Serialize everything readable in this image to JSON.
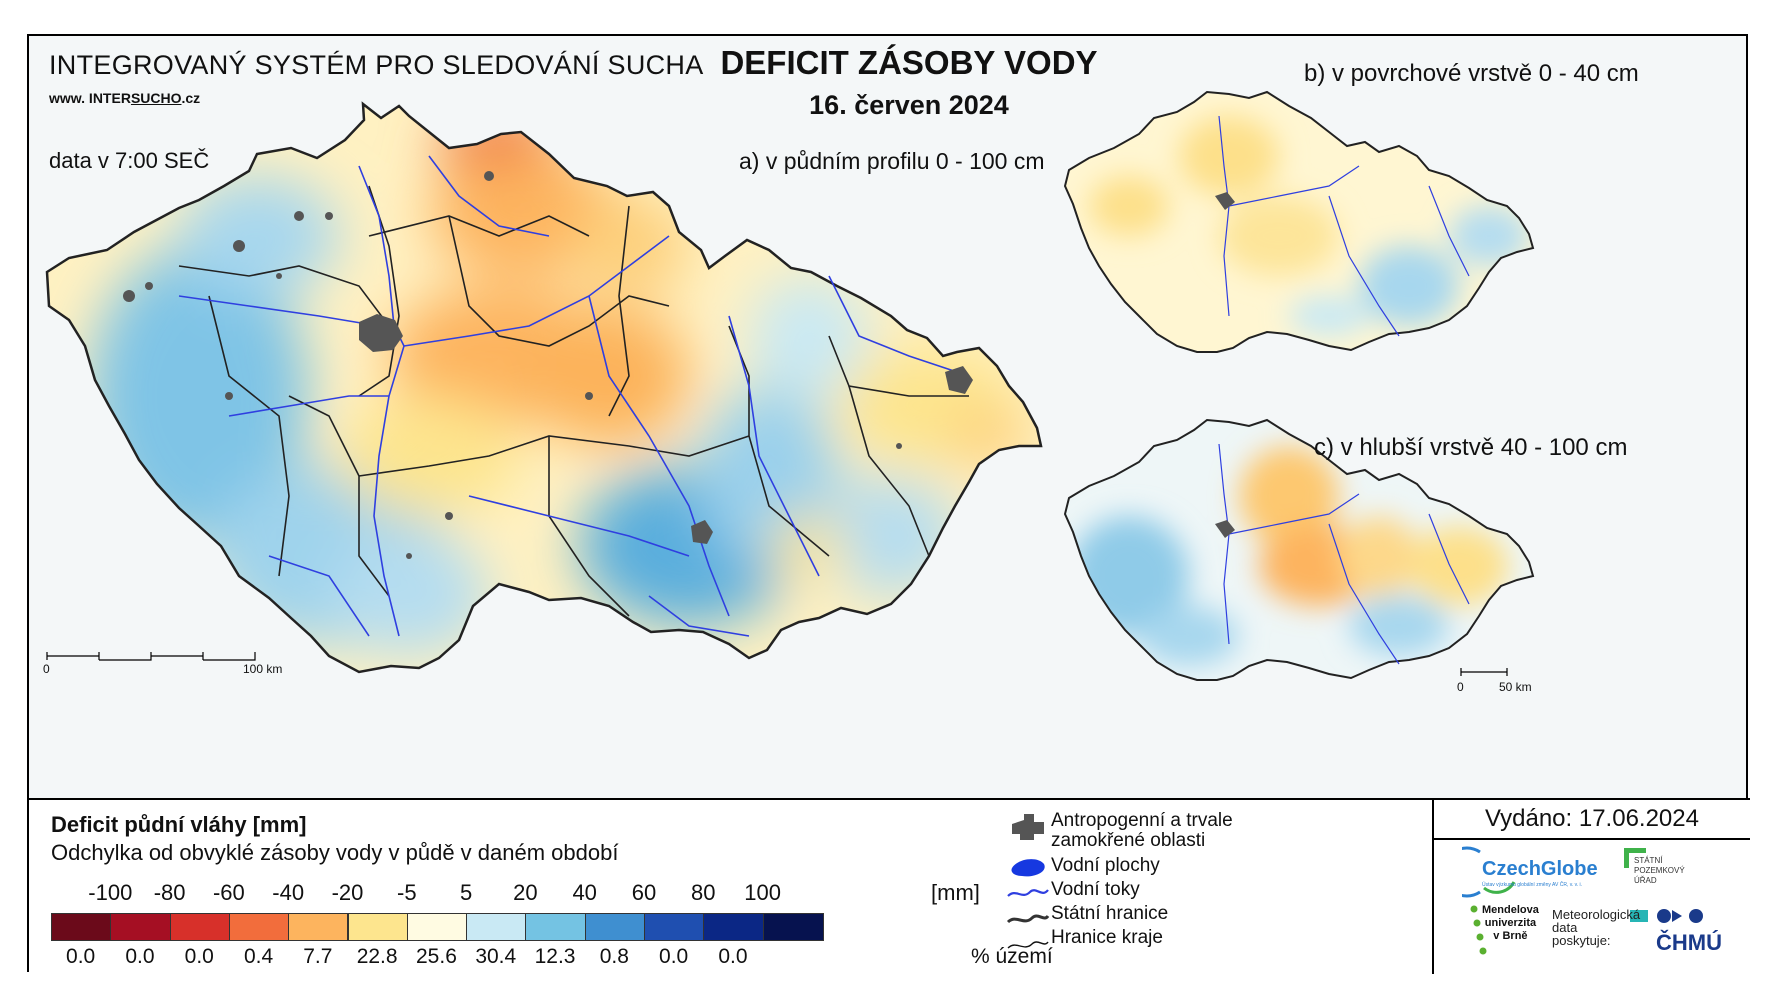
{
  "header": {
    "system_title": "INTEGROVANÝ SYSTÉM PRO SLEDOVÁNÍ SUCHA",
    "web_prefix": "www. INTER",
    "web_under": "SUCHO",
    "web_suffix": ".cz",
    "time": "data v 7:00 SEČ",
    "title": "DEFICIT ZÁSOBY VODY",
    "date": "16. červen 2024"
  },
  "maps": {
    "a_label": "a) v půdním profilu 0 - 100 cm",
    "b_label": "b) v povrchové vrstvě 0 - 40 cm",
    "c_label": "c) v hlubší vrstvě 40 - 100 cm",
    "scale_main_0": "0",
    "scale_main_end": "100 km",
    "scale_small_0": "0",
    "scale_small_end": "50 km"
  },
  "legend": {
    "title": "Deficit půdní vláhy  [mm]",
    "subtitle": "Odchylka od obvyklé zásoby vody v půdě v daném období",
    "ticks": [
      "-100",
      "-80",
      "-60",
      "-40",
      "-20",
      "-5",
      "5",
      "20",
      "40",
      "60",
      "80",
      "100"
    ],
    "unit_mm": "[mm]",
    "colors": [
      "#6b0a1a",
      "#a50f23",
      "#d7302a",
      "#f26d3c",
      "#fdb45e",
      "#fde58e",
      "#fffbe2",
      "#c9e9f4",
      "#74c3e3",
      "#3f8fd0",
      "#1f4fb0",
      "#0b2785",
      "#06124f"
    ],
    "percents": [
      "0.0",
      "0.0",
      "0.0",
      "0.4",
      "7.7",
      "22.8",
      "25.6",
      "30.4",
      "12.3",
      "0.8",
      "0.0",
      "0.0"
    ],
    "unit_pct": "% území"
  },
  "symbols": {
    "anthropogenic": "Antropogenní a trvale",
    "anthropogenic2": "zamokřené oblasti",
    "water_bodies": "Vodní plochy",
    "rivers": "Vodní toky",
    "state_border": "Státní hranice",
    "region_border": "Hranice kraje"
  },
  "issued": "Vydáno: 17.06.2024",
  "logos": {
    "czechglobe": "CzechGlobe",
    "czechglobe_sub": "Ústav výzkumu globální změny AV ČR, v. v. i.",
    "spu1": "STÁTNÍ",
    "spu2": "POZEMKOVÝ",
    "spu3": "ÚŘAD",
    "mendel1": "Mendelova",
    "mendel2": "univerzita",
    "mendel3": "v Brně",
    "meteo1": "Meteorologická",
    "meteo2": "data",
    "meteo3": "poskytuje:",
    "chmu": "ČHMÚ"
  }
}
